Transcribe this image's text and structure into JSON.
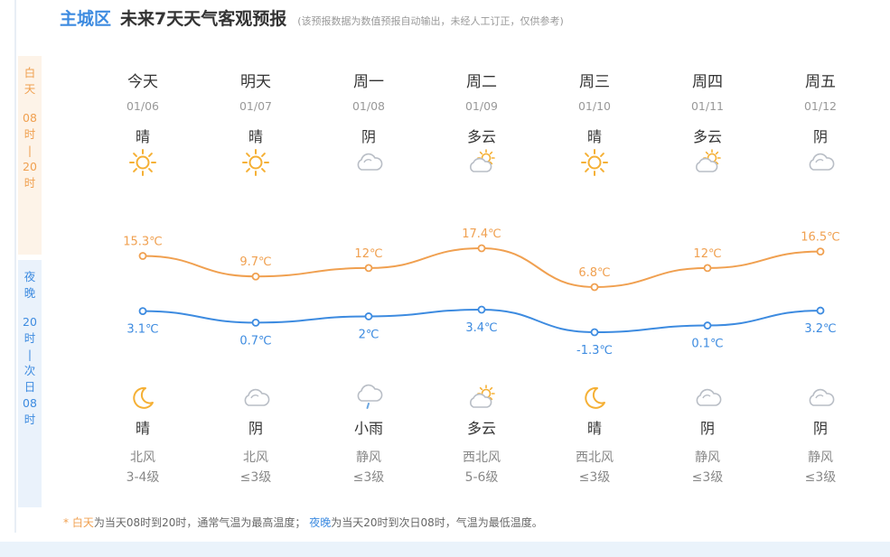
{
  "header": {
    "district": "主城区",
    "title": "未来7天天气客观预报",
    "note": "(该预报数据为数值预报自动输出，未经人工订正，仅供参考)"
  },
  "side_labels": {
    "day_title": [
      "白",
      "天"
    ],
    "day_time": [
      "08",
      "时",
      "|",
      "20",
      "时"
    ],
    "night_title": [
      "夜",
      "晚"
    ],
    "night_time": [
      "20",
      "时",
      "|",
      "次",
      "日",
      "08",
      "时"
    ]
  },
  "days": [
    {
      "name": "今天",
      "date": "01/06",
      "day_cond": "晴",
      "day_icon": "sun-icon",
      "high": "15.3℃",
      "low": "3.1℃",
      "night_icon": "moon-icon",
      "night_cond": "晴",
      "wind_dir": "北风",
      "wind_lvl": "3-4级"
    },
    {
      "name": "明天",
      "date": "01/07",
      "day_cond": "晴",
      "day_icon": "sun-icon",
      "high": "9.7℃",
      "low": "0.7℃",
      "night_icon": "cloud-icon",
      "night_cond": "阴",
      "wind_dir": "北风",
      "wind_lvl": "≤3级"
    },
    {
      "name": "周一",
      "date": "01/08",
      "day_cond": "阴",
      "day_icon": "cloud-icon",
      "high": "12℃",
      "low": "2℃",
      "night_icon": "rain-cloud-icon",
      "night_cond": "小雨",
      "wind_dir": "静风",
      "wind_lvl": "≤3级"
    },
    {
      "name": "周二",
      "date": "01/09",
      "day_cond": "多云",
      "day_icon": "partly-cloudy-icon",
      "high": "17.4℃",
      "low": "3.4℃",
      "night_icon": "partly-cloudy-icon",
      "night_cond": "多云",
      "wind_dir": "西北风",
      "wind_lvl": "5-6级"
    },
    {
      "name": "周三",
      "date": "01/10",
      "day_cond": "晴",
      "day_icon": "sun-icon",
      "high": "6.8℃",
      "low": "-1.3℃",
      "night_icon": "moon-icon",
      "night_cond": "晴",
      "wind_dir": "西北风",
      "wind_lvl": "≤3级"
    },
    {
      "name": "周四",
      "date": "01/11",
      "day_cond": "多云",
      "day_icon": "partly-cloudy-icon",
      "high": "12℃",
      "low": "0.1℃",
      "night_icon": "cloud-icon",
      "night_cond": "阴",
      "wind_dir": "静风",
      "wind_lvl": "≤3级"
    },
    {
      "name": "周五",
      "date": "01/12",
      "day_cond": "阴",
      "day_icon": "cloud-icon",
      "high": "16.5℃",
      "low": "3.2℃",
      "night_icon": "cloud-icon",
      "night_cond": "阴",
      "wind_dir": "静风",
      "wind_lvl": "≤3级"
    }
  ],
  "chart_data": {
    "type": "line",
    "categories": [
      "01/06",
      "01/07",
      "01/08",
      "01/09",
      "01/10",
      "01/11",
      "01/12"
    ],
    "series": [
      {
        "values": [
          15.3,
          9.7,
          12,
          17.4,
          6.8,
          12,
          16.5
        ],
        "color": "#f0a050"
      },
      {
        "values": [
          3.1,
          0.7,
          2,
          3.4,
          -1.3,
          0.1,
          3.2
        ],
        "color": "#3d8be0"
      }
    ]
  },
  "footer": {
    "star": "*",
    "day_word": "白天",
    "day_text": "为当天08时到20时，通常气温为最高温度；",
    "night_word": "夜晚",
    "night_text": "为当天20时到次日08时，气温为最低温度。"
  },
  "colors": {
    "day": "#f0a050",
    "night": "#3d8be0",
    "sun": "#f5b035",
    "cloud": "#b9bec6",
    "rain": "#6aa6e0"
  }
}
